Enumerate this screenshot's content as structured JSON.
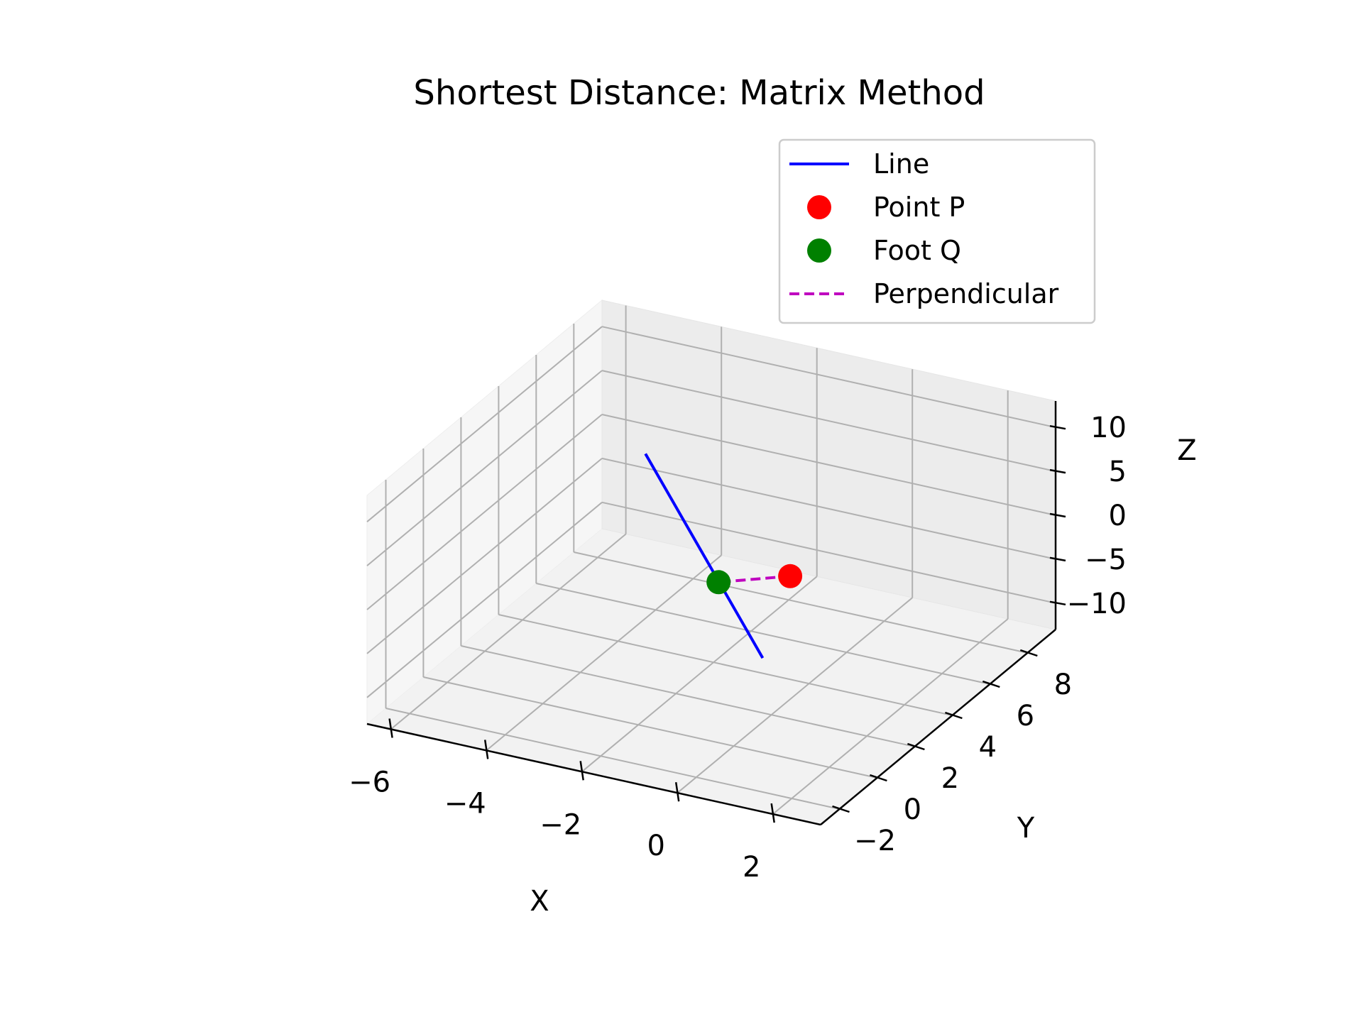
{
  "chart_data": {
    "type": "scatter",
    "projection": "3d",
    "title": "Shortest Distance: Matrix Method",
    "xlabel": "X",
    "ylabel": "Y",
    "zlabel": "Z",
    "xlim": [
      -6.5,
      3
    ],
    "ylim": [
      -3,
      9.5
    ],
    "zlim": [
      -13,
      13
    ],
    "x_ticks": [
      -6,
      -4,
      -2,
      0,
      2
    ],
    "y_ticks": [
      -2,
      0,
      2,
      4,
      6,
      8
    ],
    "z_ticks": [
      -10,
      -5,
      0,
      5,
      10
    ],
    "x_tick_labels": [
      "−6",
      "−4",
      "−2",
      "0",
      "2"
    ],
    "y_tick_labels": [
      "−2",
      "0",
      "2",
      "4",
      "6",
      "8"
    ],
    "z_tick_labels": [
      "−10",
      "−5",
      "0",
      "5",
      "10"
    ],
    "grid": true,
    "legend_position": "top-right",
    "series": [
      {
        "name": "Line",
        "kind": "line",
        "style": "solid",
        "color": "#0000ff",
        "x": [
          -5,
          1
        ],
        "y": [
          8,
          -1
        ],
        "z": [
          0,
          0
        ]
      },
      {
        "name": "Point P",
        "kind": "point",
        "color": "#ff0000",
        "x": [
          0
        ],
        "y": [
          3
        ],
        "z": [
          1
        ]
      },
      {
        "name": "Foot Q",
        "kind": "point",
        "color": "#008000",
        "x": [
          -1.5
        ],
        "y": [
          3
        ],
        "z": [
          -1.5
        ]
      },
      {
        "name": "Perpendicular",
        "kind": "line",
        "style": "dashed",
        "color": "#bf00bf",
        "x": [
          0,
          -1.5
        ],
        "y": [
          3,
          3
        ],
        "z": [
          1,
          -1.5
        ]
      }
    ]
  }
}
